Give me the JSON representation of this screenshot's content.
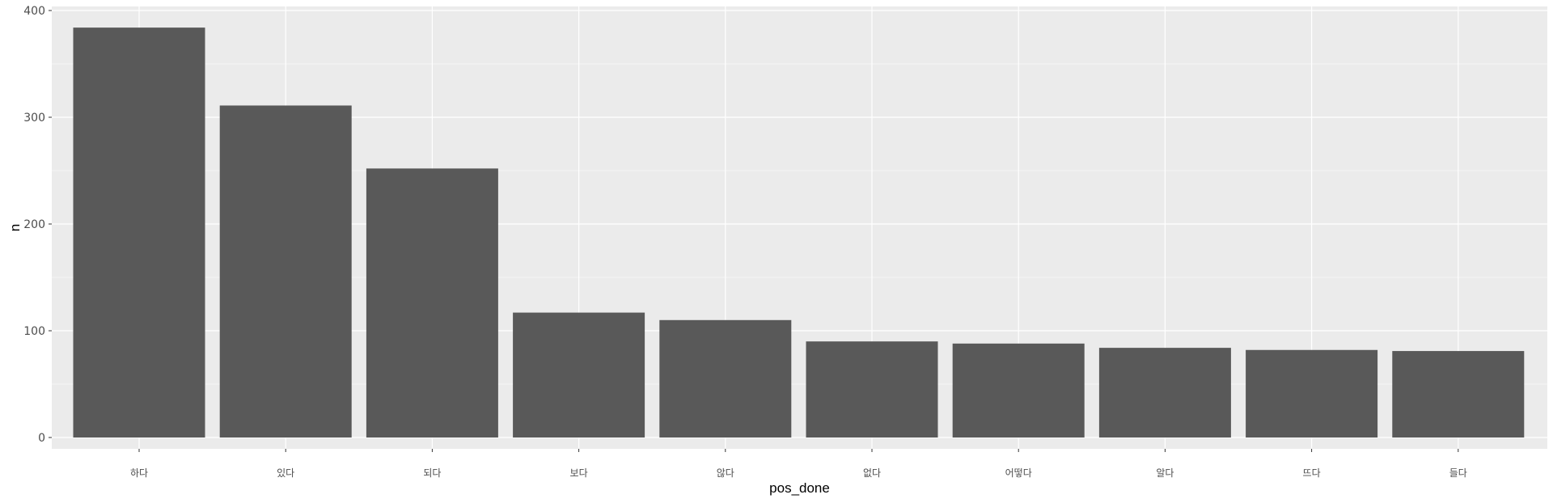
{
  "chart_data": {
    "type": "bar",
    "title": "",
    "xlabel": "pos_done",
    "ylabel": "n",
    "categories": [
      "하다",
      "있다",
      "되다",
      "보다",
      "않다",
      "없다",
      "어떻다",
      "알다",
      "뜨다",
      "들다"
    ],
    "values": [
      384,
      311,
      252,
      117,
      110,
      90,
      88,
      84,
      82,
      81
    ],
    "ylim": [
      0,
      400
    ],
    "yticks": [
      0,
      100,
      200,
      300,
      400
    ],
    "grid": true
  },
  "colors": {
    "panel_background": "#ebebeb",
    "grid_major": "#ffffff",
    "bar_fill": "#595959",
    "tick_text": "#4d4d4d",
    "tick_mark": "#333333"
  }
}
